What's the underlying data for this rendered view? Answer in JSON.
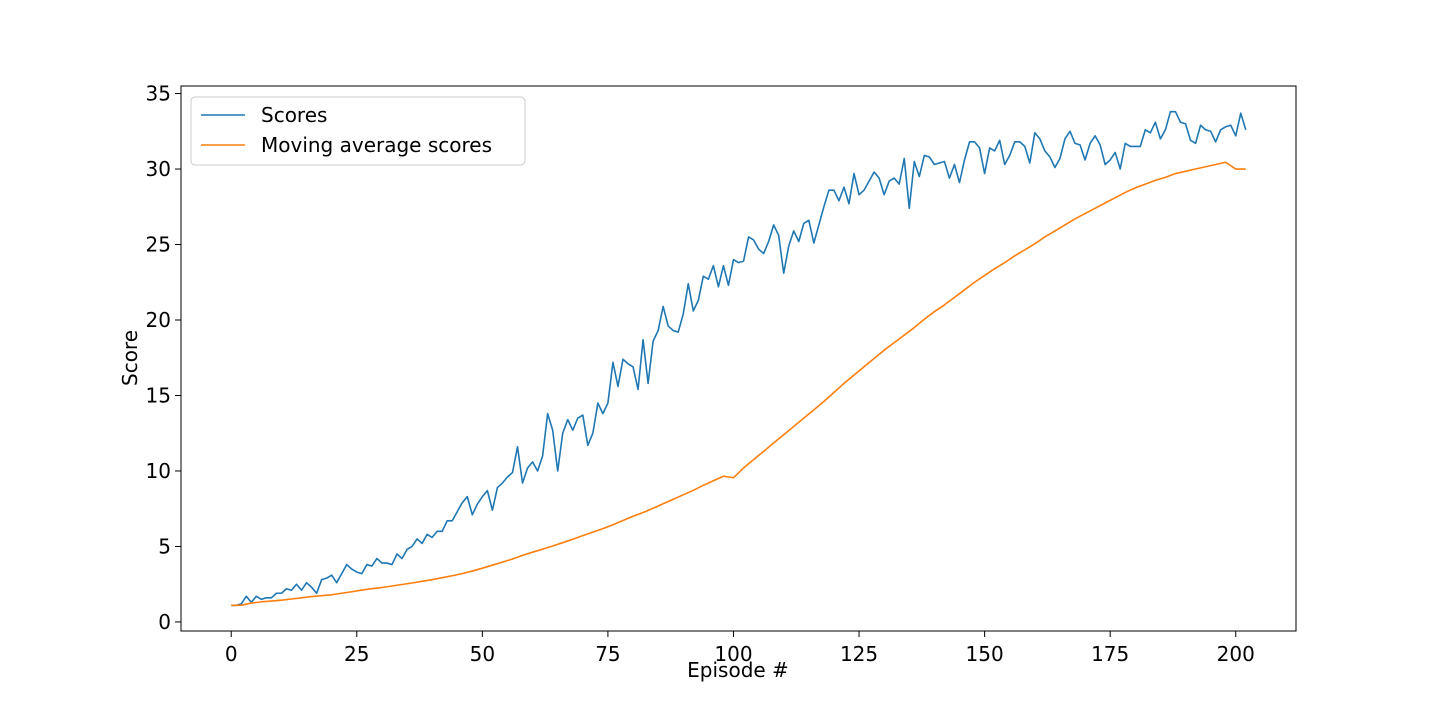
{
  "chart_data": {
    "type": "line",
    "title": "",
    "xlabel": "Episode #",
    "ylabel": "Score",
    "xlim": [
      -10,
      212
    ],
    "ylim": [
      -0.6,
      35.5
    ],
    "xticks": [
      0,
      25,
      50,
      75,
      100,
      125,
      150,
      175,
      200
    ],
    "yticks": [
      0,
      5,
      10,
      15,
      20,
      25,
      30,
      35
    ],
    "grid": false,
    "legend_position": "upper left",
    "series": [
      {
        "name": "Scores",
        "color": "#1f77b4",
        "x": [
          0,
          1,
          2,
          3,
          4,
          5,
          6,
          7,
          8,
          9,
          10,
          11,
          12,
          13,
          14,
          15,
          16,
          17,
          18,
          19,
          20,
          21,
          22,
          23,
          24,
          25,
          26,
          27,
          28,
          29,
          30,
          31,
          32,
          33,
          34,
          35,
          36,
          37,
          38,
          39,
          40,
          41,
          42,
          43,
          44,
          45,
          46,
          47,
          48,
          49,
          50,
          51,
          52,
          53,
          54,
          55,
          56,
          57,
          58,
          59,
          60,
          61,
          62,
          63,
          64,
          65,
          66,
          67,
          68,
          69,
          70,
          71,
          72,
          73,
          74,
          75,
          76,
          77,
          78,
          79,
          80,
          81,
          82,
          83,
          84,
          85,
          86,
          87,
          88,
          89,
          90,
          91,
          92,
          93,
          94,
          95,
          96,
          97,
          98,
          99,
          100,
          101,
          102,
          103,
          104,
          105,
          106,
          107,
          108,
          109,
          110,
          111,
          112,
          113,
          114,
          115,
          116,
          117,
          118,
          119,
          120,
          121,
          122,
          123,
          124,
          125,
          126,
          127,
          128,
          129,
          130,
          131,
          132,
          133,
          134,
          135,
          136,
          137,
          138,
          139,
          140,
          141,
          142,
          143,
          144,
          145,
          146,
          147,
          148,
          149,
          150,
          151,
          152,
          153,
          154,
          155,
          156,
          157,
          158,
          159,
          160,
          161,
          162,
          163,
          164,
          165,
          166,
          167,
          168,
          169,
          170,
          171,
          172,
          173,
          174,
          175,
          176,
          177,
          178,
          179,
          180,
          181,
          182,
          183,
          184,
          185,
          186,
          187,
          188,
          189,
          190,
          191,
          192,
          193,
          194,
          195,
          196,
          197,
          198,
          199,
          200,
          201,
          202
        ],
        "y": [
          1.1,
          1.1,
          1.2,
          1.7,
          1.3,
          1.7,
          1.5,
          1.6,
          1.6,
          1.9,
          1.9,
          2.2,
          2.1,
          2.5,
          2.1,
          2.6,
          2.3,
          1.9,
          2.8,
          2.9,
          3.1,
          2.6,
          3.2,
          3.8,
          3.5,
          3.3,
          3.2,
          3.8,
          3.7,
          4.2,
          3.9,
          3.9,
          3.8,
          4.5,
          4.2,
          4.8,
          5.0,
          5.5,
          5.2,
          5.8,
          5.6,
          6.0,
          6.0,
          6.7,
          6.7,
          7.3,
          7.9,
          8.3,
          7.1,
          7.8,
          8.3,
          8.7,
          7.4,
          8.9,
          9.2,
          9.6,
          9.9,
          11.6,
          9.2,
          10.2,
          10.6,
          10.0,
          11.0,
          13.8,
          12.7,
          10.0,
          12.5,
          13.4,
          12.7,
          13.5,
          13.7,
          11.7,
          12.5,
          14.5,
          13.8,
          14.5,
          17.2,
          15.6,
          17.4,
          17.1,
          16.9,
          15.4,
          18.7,
          15.8,
          18.6,
          19.3,
          20.9,
          19.6,
          19.3,
          19.2,
          20.4,
          22.4,
          20.6,
          21.3,
          22.9,
          22.7,
          23.6,
          22.2,
          23.6,
          22.3,
          24.0,
          23.8,
          23.9,
          25.5,
          25.3,
          24.7,
          24.4,
          25.2,
          26.3,
          25.6,
          23.1,
          24.9,
          25.9,
          25.2,
          26.4,
          26.6,
          25.1,
          26.3,
          27.5,
          28.6,
          28.6,
          27.9,
          28.8,
          27.7,
          29.7,
          28.3,
          28.6,
          29.2,
          29.8,
          29.4,
          28.3,
          29.2,
          29.4,
          29.0,
          30.7,
          27.4,
          30.5,
          29.5,
          30.9,
          30.8,
          30.3,
          30.4,
          30.5,
          29.4,
          30.3,
          29.1,
          30.6,
          31.8,
          31.8,
          31.4,
          29.7,
          31.4,
          31.2,
          31.9,
          30.3,
          30.9,
          31.8,
          31.8,
          31.5,
          30.4,
          32.4,
          32.0,
          31.2,
          30.8,
          30.1,
          30.7,
          32.0,
          32.5,
          31.7,
          31.6,
          30.6,
          31.7,
          32.2,
          31.6,
          30.3,
          30.6,
          31.1,
          30.0,
          31.7,
          31.5,
          31.5,
          31.5,
          32.6,
          32.4,
          33.1,
          32.0,
          32.6,
          33.8,
          33.8,
          33.1,
          33.0,
          31.9,
          31.7,
          32.9,
          32.6,
          32.5,
          31.8,
          32.6,
          32.8,
          32.9,
          32.2,
          33.7,
          32.6
        ]
      },
      {
        "name": "Moving average scores",
        "color": "#ff7f0e",
        "x": [
          0,
          2,
          4,
          6,
          8,
          10,
          12,
          14,
          16,
          18,
          20,
          22,
          24,
          26,
          28,
          30,
          32,
          34,
          36,
          38,
          40,
          42,
          44,
          46,
          48,
          50,
          52,
          54,
          56,
          58,
          60,
          62,
          64,
          66,
          68,
          70,
          72,
          74,
          76,
          78,
          80,
          82,
          84,
          86,
          88,
          90,
          92,
          94,
          96,
          98,
          100,
          102,
          104,
          106,
          108,
          110,
          112,
          114,
          116,
          118,
          120,
          122,
          124,
          126,
          128,
          130,
          132,
          134,
          136,
          138,
          140,
          142,
          144,
          146,
          148,
          150,
          152,
          154,
          156,
          158,
          160,
          162,
          164,
          166,
          168,
          170,
          172,
          174,
          176,
          178,
          180,
          182,
          184,
          186,
          188,
          190,
          192,
          194,
          196,
          198,
          200,
          202
        ],
        "y": [
          1.1,
          1.1,
          1.25,
          1.33,
          1.38,
          1.44,
          1.52,
          1.6,
          1.68,
          1.74,
          1.8,
          1.9,
          2.0,
          2.11,
          2.2,
          2.28,
          2.38,
          2.48,
          2.58,
          2.69,
          2.8,
          2.93,
          3.06,
          3.2,
          3.37,
          3.56,
          3.76,
          3.96,
          4.17,
          4.41,
          4.62,
          4.82,
          5.03,
          5.25,
          5.48,
          5.72,
          5.95,
          6.18,
          6.44,
          6.72,
          7.0,
          7.25,
          7.53,
          7.83,
          8.12,
          8.42,
          8.72,
          9.05,
          9.35,
          9.65,
          9.55,
          10.2,
          10.75,
          11.3,
          11.85,
          12.4,
          12.95,
          13.5,
          14.05,
          14.6,
          15.2,
          15.8,
          16.35,
          16.9,
          17.45,
          18.0,
          18.5,
          19.0,
          19.5,
          20.05,
          20.55,
          21.0,
          21.5,
          22.0,
          22.5,
          22.95,
          23.4,
          23.8,
          24.25,
          24.65,
          25.05,
          25.5,
          25.9,
          26.3,
          26.7,
          27.05,
          27.4,
          27.75,
          28.1,
          28.45,
          28.75,
          29.0,
          29.25,
          29.45,
          29.7,
          29.85,
          30.0,
          30.15,
          30.3,
          30.45,
          30.0,
          30.0
        ]
      }
    ]
  }
}
